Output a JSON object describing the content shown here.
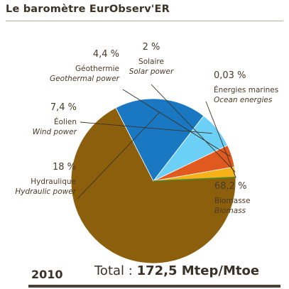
{
  "title": "Le baromètre EurObserv'ER",
  "chart_data": {
    "type": "pie",
    "title": "",
    "categories": [
      "Biomasse / Biomass",
      "Hydraulique / Hydraulic power",
      "Éolien / Wind power",
      "Géothermie / Geothermal power",
      "Solaire / Solar power",
      "Énergies marines / Ocean energies"
    ],
    "values": [
      68.2,
      18,
      7.4,
      4.4,
      2,
      0.03
    ],
    "slices": [
      {
        "label_fr": "Biomasse",
        "label_en": "Biomass",
        "value": 68.2,
        "value_label": "68,2 %",
        "color": "#8b5f0c"
      },
      {
        "label_fr": "Hydraulique",
        "label_en": "Hydraulic power",
        "value": 18,
        "value_label": "18 %",
        "color": "#1a78c2"
      },
      {
        "label_fr": "Éolien",
        "label_en": "Wind power",
        "value": 7.4,
        "value_label": "7,4 %",
        "color": "#6ccff6"
      },
      {
        "label_fr": "Géothermie",
        "label_en": "Geothermal power",
        "value": 4.4,
        "value_label": "4,4 %",
        "color": "#e05a1f"
      },
      {
        "label_fr": "Solaire",
        "label_en": "Solar power",
        "value": 2,
        "value_label": "2 %",
        "color": "#f7b21a"
      },
      {
        "label_fr": "Énergies marines",
        "label_en": "Ocean energies",
        "value": 0.03,
        "value_label": "0,03 %",
        "color": "#4d8a2e"
      }
    ],
    "legend": "none"
  },
  "footer": {
    "year": "2010",
    "total_label": "Total :",
    "total_value": "172,5 Mtep/Mtoe"
  }
}
